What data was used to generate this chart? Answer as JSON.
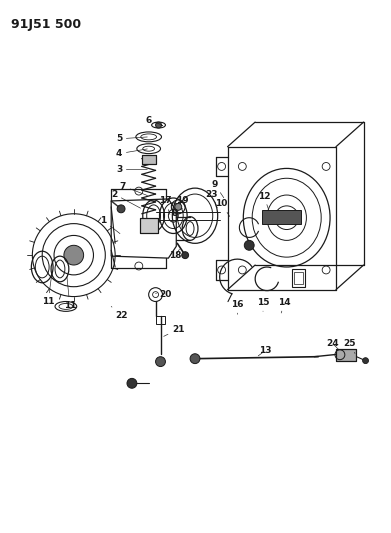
{
  "title": "91J51 500",
  "bg_color": "#ffffff",
  "line_color": "#1a1a1a",
  "title_fontsize": 9,
  "label_fontsize": 6.5,
  "fig_w": 3.91,
  "fig_h": 5.33,
  "dpi": 100
}
